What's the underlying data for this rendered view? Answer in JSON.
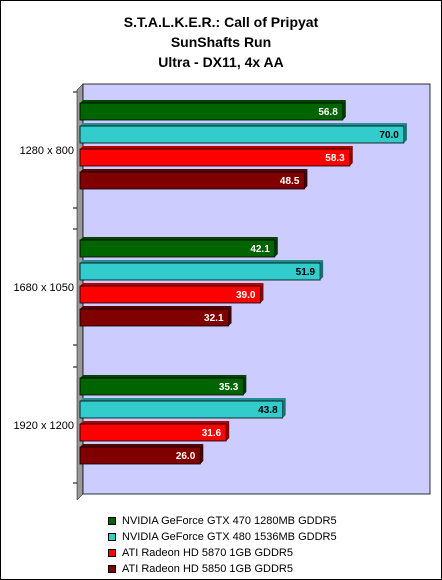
{
  "chart_data": {
    "type": "bar",
    "orientation": "horizontal",
    "title": "S.T.A.L.K.E.R.: Call of Pripyat",
    "subtitle": [
      "SunShafts Run",
      "Ultra - DX11, 4x AA"
    ],
    "categories": [
      "1280 x 800",
      "1680 x 1050",
      "1920 x 1200"
    ],
    "series": [
      {
        "name": "NVIDIA GeForce GTX 470 1280MB GDDR5",
        "color": "#006400",
        "label_color": "#ffffff",
        "values": [
          56.8,
          42.1,
          35.3
        ]
      },
      {
        "name": "NVIDIA GeForce GTX 480 1536MB GDDR5",
        "color": "#33CCCC",
        "label_color": "#000000",
        "values": [
          70.0,
          51.9,
          43.8
        ]
      },
      {
        "name": "ATI Radeon HD 5870 1GB GDDR5",
        "color": "#FF0000",
        "label_color": "#ffffff",
        "values": [
          58.3,
          39.0,
          31.6
        ]
      },
      {
        "name": "ATI Radeon HD 5850 1GB GDDR5",
        "color": "#800000",
        "label_color": "#ffffff",
        "values": [
          48.5,
          32.1,
          26.0
        ]
      }
    ],
    "xlim": [
      0,
      75
    ],
    "grid": false,
    "legend_position": "bottom",
    "plot_background": "#CCCCFF"
  }
}
